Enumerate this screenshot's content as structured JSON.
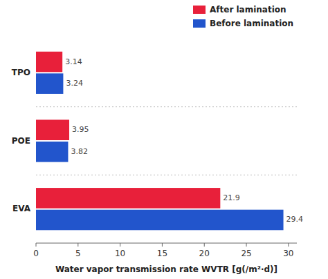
{
  "chart_data": {
    "type": "bar",
    "orientation": "horizontal",
    "xlabel": "Water vapor transmission rate WVTR [g(/m²·d)]",
    "categories": [
      "EVA",
      "POE",
      "TPO"
    ],
    "series": [
      {
        "name": "After lamination",
        "color": "#e8203a",
        "values": [
          21.9,
          3.95,
          3.14
        ]
      },
      {
        "name": "Before lamination",
        "color": "#2255cc",
        "values": [
          29.4,
          3.82,
          3.24
        ]
      }
    ],
    "xlim": [
      0,
      31
    ],
    "xticks": [
      0,
      5,
      10,
      15,
      20,
      25,
      30
    ],
    "grid": false,
    "legend": "upper right",
    "data_labels": true
  }
}
